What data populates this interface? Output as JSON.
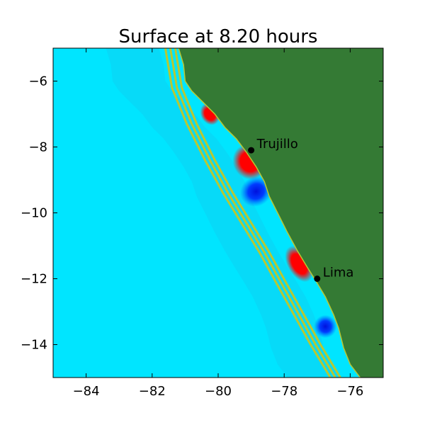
{
  "chart_data": {
    "type": "heatmap",
    "title": "Surface at 8.20 hours",
    "xlabel": "",
    "ylabel": "",
    "xlim": [
      -85,
      -75
    ],
    "ylim": [
      -15,
      -5
    ],
    "x_ticks": [
      -84,
      -82,
      -80,
      -78,
      -76
    ],
    "y_ticks": [
      -6,
      -8,
      -10,
      -12,
      -14
    ],
    "x_tick_labels": [
      "−84",
      "−82",
      "−80",
      "−78",
      "−76"
    ],
    "y_tick_labels": [
      "−6",
      "−8",
      "−10",
      "−12",
      "−14"
    ],
    "grid": false,
    "legend": "none",
    "colors": {
      "land": "#347a34",
      "ocean": "#00e5ff",
      "ocean_mid": "#10cdf0",
      "shelf_contour": "#b8c832",
      "positive": "#ff0000",
      "negative": "#0022ee"
    },
    "coastline": [
      [
        -81.2,
        -5.0
      ],
      [
        -81.05,
        -5.5
      ],
      [
        -81.0,
        -6.0
      ],
      [
        -80.8,
        -6.3
      ],
      [
        -80.5,
        -6.6
      ],
      [
        -80.1,
        -7.0
      ],
      [
        -79.8,
        -7.4
      ],
      [
        -79.45,
        -7.75
      ],
      [
        -79.15,
        -8.15
      ],
      [
        -78.85,
        -8.6
      ],
      [
        -78.6,
        -9.05
      ],
      [
        -78.45,
        -9.5
      ],
      [
        -78.2,
        -10.0
      ],
      [
        -77.9,
        -10.6
      ],
      [
        -77.6,
        -11.15
      ],
      [
        -77.3,
        -11.65
      ],
      [
        -77.05,
        -12.05
      ],
      [
        -76.75,
        -12.55
      ],
      [
        -76.5,
        -13.1
      ],
      [
        -76.35,
        -13.5
      ],
      [
        -76.2,
        -14.1
      ],
      [
        -76.0,
        -14.6
      ],
      [
        -75.7,
        -15.0
      ]
    ],
    "shelf_contours": [
      [
        [
          -81.6,
          -5.0
        ],
        [
          -81.4,
          -6.2
        ],
        [
          -80.95,
          -7.3
        ],
        [
          -80.4,
          -8.4
        ],
        [
          -79.85,
          -9.4
        ],
        [
          -79.3,
          -10.3
        ],
        [
          -78.75,
          -11.2
        ],
        [
          -78.2,
          -12.2
        ],
        [
          -77.7,
          -13.1
        ],
        [
          -77.2,
          -14.0
        ],
        [
          -76.6,
          -15.0
        ]
      ],
      [
        [
          -81.45,
          -5.0
        ],
        [
          -81.25,
          -6.2
        ],
        [
          -80.8,
          -7.3
        ],
        [
          -80.25,
          -8.4
        ],
        [
          -79.7,
          -9.4
        ],
        [
          -79.15,
          -10.3
        ],
        [
          -78.6,
          -11.2
        ],
        [
          -78.05,
          -12.2
        ],
        [
          -77.55,
          -13.1
        ],
        [
          -77.05,
          -14.0
        ],
        [
          -76.45,
          -15.0
        ]
      ],
      [
        [
          -81.3,
          -5.0
        ],
        [
          -81.1,
          -6.2
        ],
        [
          -80.65,
          -7.3
        ],
        [
          -80.1,
          -8.4
        ],
        [
          -79.55,
          -9.4
        ],
        [
          -79.0,
          -10.3
        ],
        [
          -78.45,
          -11.2
        ],
        [
          -77.9,
          -12.2
        ],
        [
          -77.4,
          -13.1
        ],
        [
          -76.9,
          -14.0
        ],
        [
          -76.3,
          -15.0
        ]
      ]
    ],
    "anomalies": [
      {
        "sign": "positive",
        "cx": -80.25,
        "cy": -7.0,
        "rx": 0.28,
        "ry": 0.35
      },
      {
        "sign": "positive",
        "cx": -79.05,
        "cy": -8.45,
        "rx": 0.5,
        "ry": 0.55
      },
      {
        "sign": "negative",
        "cx": -78.85,
        "cy": -9.35,
        "rx": 0.5,
        "ry": 0.45
      },
      {
        "sign": "positive",
        "cx": -77.55,
        "cy": -11.55,
        "rx": 0.35,
        "ry": 0.6
      },
      {
        "sign": "negative",
        "cx": -76.75,
        "cy": -13.45,
        "rx": 0.35,
        "ry": 0.35
      }
    ],
    "cities": [
      {
        "name": "Trujillo",
        "lon": -79.0,
        "lat": -8.1
      },
      {
        "name": "Lima",
        "lon": -77.0,
        "lat": -12.0
      }
    ]
  }
}
